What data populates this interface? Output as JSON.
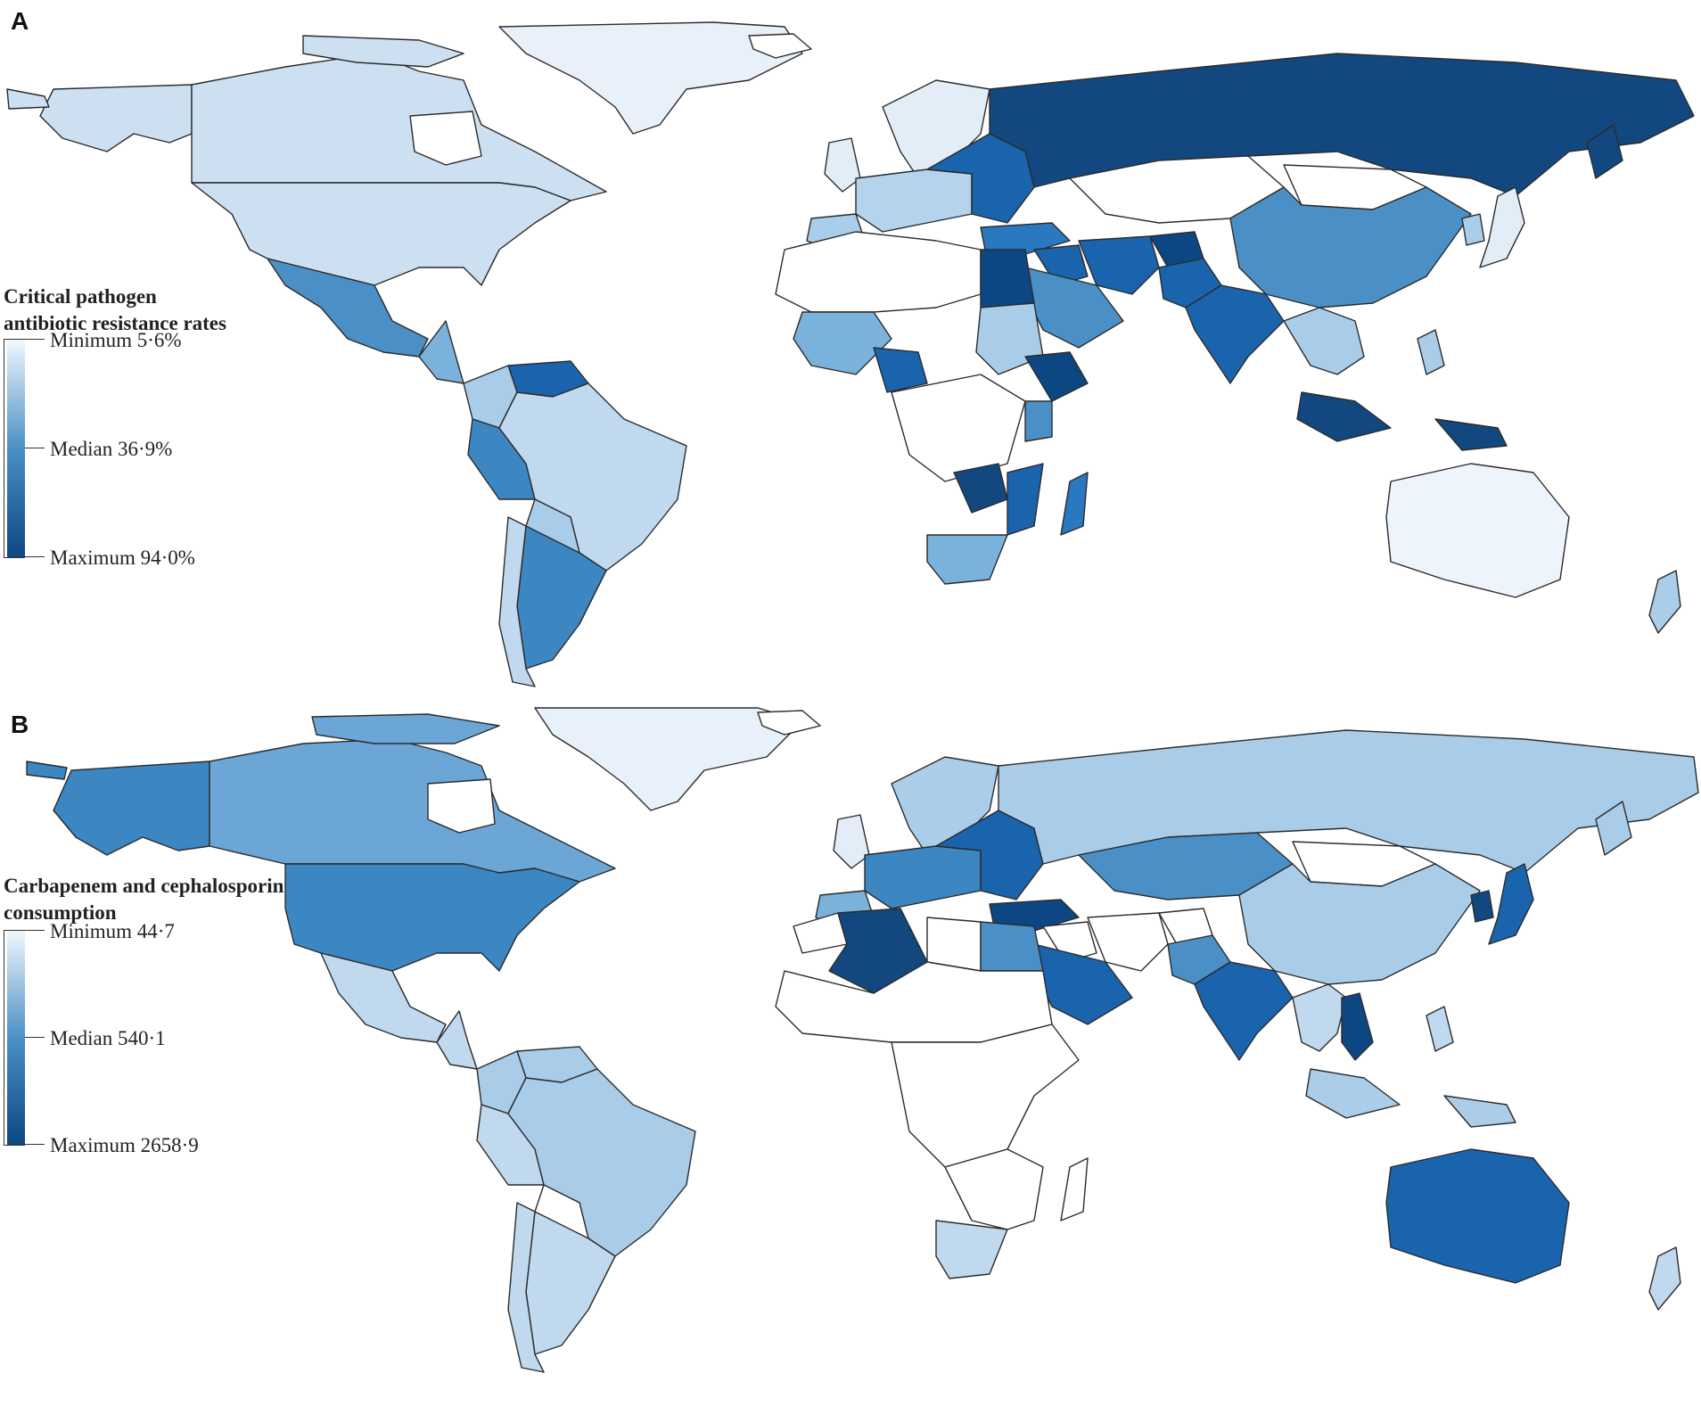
{
  "panel_a": {
    "letter": "A",
    "legend": {
      "title_line1": "Critical pathogen",
      "title_line2": "antibiotic resistance rates",
      "min_label": "Minimum 5·6%",
      "median_label": "Median 36·9%",
      "max_label": "Maximum 94·0%"
    },
    "colors": {
      "russia": "#12487f",
      "scandinavia": "#e3edf8",
      "canada": "#cde0f2",
      "usa": "#cde0f2",
      "alaska": "#cde0f2",
      "greenland": "#e8f0f9",
      "mexico": "#4a90c6",
      "central_america": "#7ab2dc",
      "south_america_north": "#a9cde9",
      "venezuela": "#1a64ad",
      "brazil": "#c0d9ee",
      "peru": "#3c86c2",
      "bolivia": "#a9cde9",
      "argentina": "#3c86c2",
      "chile": "#c0d9ee",
      "europe_west": "#b4d3ec",
      "europe_east": "#1a64ad",
      "iberia": "#aacdea",
      "turkey": "#2a78c0",
      "middle_east": "#1a64ad",
      "iran": "#1a64ad",
      "afghanistan": "#0d4783",
      "pakistan": "#1a64ad",
      "india": "#1a64ad",
      "china": "#4a90c6",
      "kazakhstan": "#ffffff",
      "mongolia": "#ffffff",
      "japan": "#e3edf8",
      "korea": "#aacdea",
      "southeast_asia": "#a9cde9",
      "indonesia": "#12487f",
      "philippines": "#a9cde9",
      "australia": "#eef4fb",
      "new_zealand": "#aacdea",
      "egypt": "#0d4783",
      "libya": "#ffffff",
      "sudan": "#a9cde9",
      "ethiopia": "#0d4783",
      "kenya": "#4a90c6",
      "west_africa": "#7ab2dc",
      "nigeria": "#1a64ad",
      "zimbabwe": "#12487f",
      "mozambique": "#1a64ad",
      "madagascar": "#2a78c0",
      "south_africa": "#7ab2dc",
      "saudi": "#4a90c6",
      "africa_rest": "#ffffff",
      "iceland": "#ffffff",
      "uk": "#e3edf8"
    }
  },
  "panel_b": {
    "letter": "B",
    "legend": {
      "title_line1": "Carbapenem and cephalosporin",
      "title_line2": "consumption",
      "min_label": "Minimum 44·7",
      "median_label": "Median 540·1",
      "max_label": "Maximum 2658·9"
    },
    "colors": {
      "russia": "#a9cde9",
      "scandinavia": "#aacdea",
      "canada": "#6ba6d6",
      "usa": "#3c86c2",
      "alaska": "#3c86c2",
      "greenland": "#e8f0f9",
      "mexico": "#c0d9ee",
      "central_america": "#c0d9ee",
      "south_america_north": "#a9cde9",
      "venezuela": "#a9cde9",
      "brazil": "#a9cde9",
      "peru": "#c0d9ee",
      "bolivia": "#ffffff",
      "argentina": "#c0d9ee",
      "chile": "#c0d9ee",
      "europe_west": "#3c86c2",
      "europe_east": "#1a64ad",
      "iberia": "#7ab2dc",
      "turkey": "#0d4783",
      "middle_east": "#ffffff",
      "iran": "#ffffff",
      "afghanistan": "#ffffff",
      "pakistan": "#4a90c6",
      "india": "#1a64ad",
      "china": "#a9cde9",
      "kazakhstan": "#4a90c6",
      "mongolia": "#ffffff",
      "japan": "#1a64ad",
      "korea": "#12487f",
      "southeast_asia": "#c0d9ee",
      "indonesia": "#aacdea",
      "philippines": "#c0d9ee",
      "australia": "#1a64ad",
      "new_zealand": "#c0d9ee",
      "egypt": "#4a90c6",
      "libya": "#ffffff",
      "sudan": "#ffffff",
      "ethiopia": "#ffffff",
      "kenya": "#ffffff",
      "west_africa": "#ffffff",
      "nigeria": "#ffffff",
      "zimbabwe": "#ffffff",
      "mozambique": "#ffffff",
      "madagascar": "#ffffff",
      "south_africa": "#c0d9ee",
      "saudi": "#1a64ad",
      "africa_rest": "#ffffff",
      "iceland": "#ffffff",
      "uk": "#e3edf8",
      "algeria": "#12487f",
      "vietnam": "#0d4783"
    }
  }
}
